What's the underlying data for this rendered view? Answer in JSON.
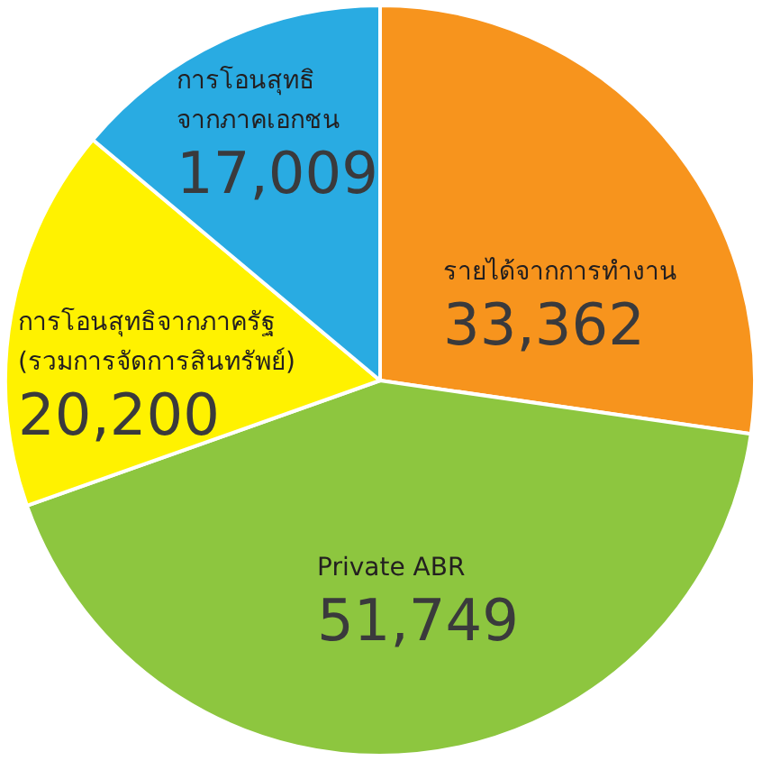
{
  "chart_data": {
    "type": "pie",
    "categories": [
      "รายได้จากการทำงาน",
      "Private ABR",
      "การโอนสุทธิจากภาครัฐ (รวมการจัดการสินทรัพย์)",
      "การโอนสุทธิ จากภาคเอกชน"
    ],
    "values": [
      33362,
      51749,
      20200,
      17009
    ],
    "value_labels": [
      "33,362",
      "51,749",
      "20,200",
      "17,009"
    ],
    "colors": [
      "#f7941d",
      "#8dc63f",
      "#fff200",
      "#29abe2"
    ]
  }
}
